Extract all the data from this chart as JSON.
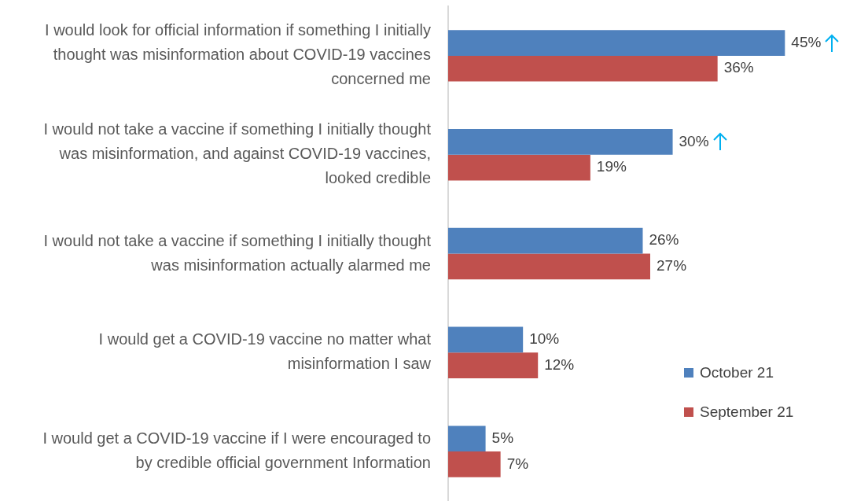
{
  "chart_data": {
    "type": "bar",
    "orientation": "horizontal",
    "legend": "bottom right",
    "categories": [
      "I would look for official information if something I initially thought was misinformation about COVID-19 vaccines concerned me",
      "I would not take a vaccine if something I initially thought was misinformation, and against COVID-19 vaccines, looked credible",
      "I would not take a vaccine if something I initially thought was misinformation actually alarmed me",
      "I would get a COVID-19 vaccine no matter what misinformation I saw",
      "I would get a COVID-19 vaccine if I were encouraged to by credible official government Information"
    ],
    "series": [
      {
        "name": "October 21",
        "color": "#4f81bd",
        "values": [
          45,
          30,
          26,
          10,
          5
        ],
        "value_labels": [
          "45%",
          "30%",
          "26%",
          "10%",
          "5%"
        ]
      },
      {
        "name": "September 21",
        "color": "#c0504d",
        "values": [
          36,
          19,
          27,
          12,
          7
        ],
        "value_labels": [
          "36%",
          "19%",
          "27%",
          "12%",
          "7%"
        ]
      }
    ]
  }
}
